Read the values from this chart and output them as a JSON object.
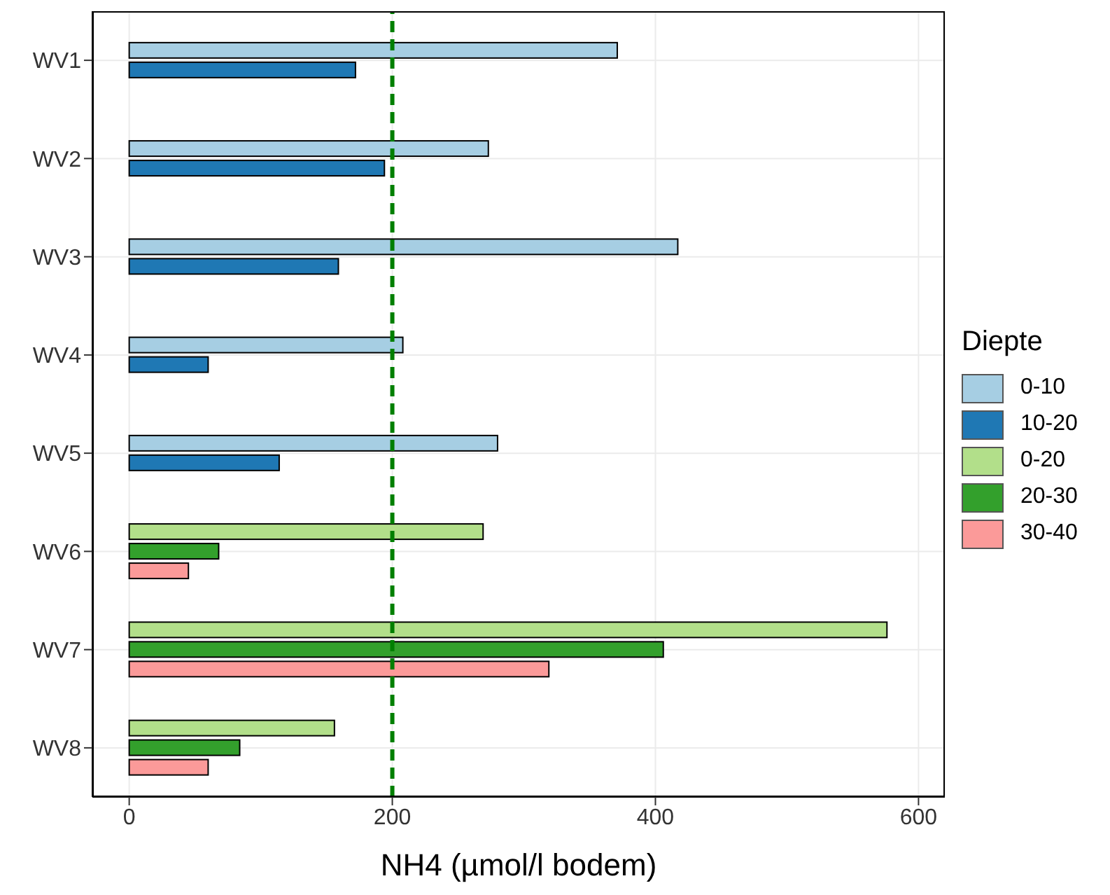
{
  "chart_data": {
    "type": "bar",
    "orientation": "horizontal",
    "xlabel": "NH4 (µmol/l bodem)",
    "legend_title": "Diepte",
    "categories": [
      "WV1",
      "WV2",
      "WV3",
      "WV4",
      "WV5",
      "WV6",
      "WV7",
      "WV8"
    ],
    "series": [
      {
        "name": "0-10",
        "color": "#a6cee3",
        "values": [
          371,
          273,
          417,
          208,
          280,
          null,
          null,
          null
        ]
      },
      {
        "name": "10-20",
        "color": "#1f78b4",
        "values": [
          172,
          194,
          159,
          60,
          114,
          null,
          null,
          null
        ]
      },
      {
        "name": "0-20",
        "color": "#b2df8a",
        "values": [
          null,
          null,
          null,
          null,
          null,
          269,
          576,
          156
        ]
      },
      {
        "name": "20-30",
        "color": "#33a02c",
        "values": [
          null,
          null,
          null,
          null,
          null,
          68,
          406,
          84
        ]
      },
      {
        "name": "30-40",
        "color": "#fb9a99",
        "values": [
          null,
          null,
          null,
          null,
          null,
          45,
          319,
          60
        ]
      }
    ],
    "xlim": [
      -28,
      620
    ],
    "xticks": [
      0,
      200,
      400,
      600
    ],
    "grid": true,
    "legend": "right",
    "ref_lines": [
      {
        "axis": "x",
        "value": 200,
        "color": "#007f00",
        "line_style": "dashed"
      }
    ]
  }
}
